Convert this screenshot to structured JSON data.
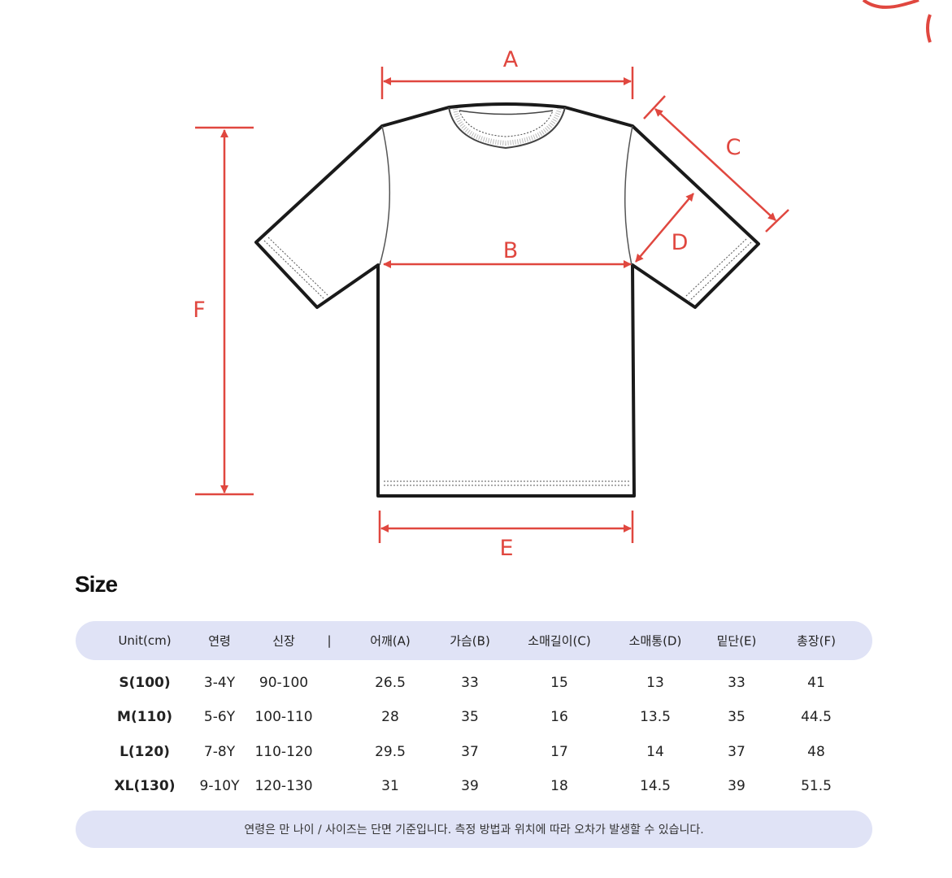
{
  "diagram": {
    "labels": {
      "A": "A",
      "B": "B",
      "C": "C",
      "D": "D",
      "E": "E",
      "F": "F"
    },
    "colors": {
      "arrow": "#e0473f",
      "outline": "#1a1a1a"
    }
  },
  "size_title": "Size",
  "table": {
    "headers": [
      "Unit(cm)",
      "연령",
      "신장",
      "|",
      "어깨(A)",
      "가슴(B)",
      "소매길이(C)",
      "소매통(D)",
      "밑단(E)",
      "총장(F)"
    ],
    "rows": [
      [
        "S(100)",
        "3-4Y",
        "90-100",
        "",
        "26.5",
        "33",
        "15",
        "13",
        "33",
        "41"
      ],
      [
        "M(110)",
        "5-6Y",
        "100-110",
        "",
        "28",
        "35",
        "16",
        "13.5",
        "35",
        "44.5"
      ],
      [
        "L(120)",
        "7-8Y",
        "110-120",
        "",
        "29.5",
        "37",
        "17",
        "14",
        "37",
        "48"
      ],
      [
        "XL(130)",
        "9-10Y",
        "120-130",
        "",
        "31",
        "39",
        "18",
        "14.5",
        "39",
        "51.5"
      ]
    ],
    "footnote": "연령은 만 나이 /  사이즈는 단면 기준입니다. 측정 방법과 위치에 따라 오차가 발생할 수 있습니다."
  }
}
